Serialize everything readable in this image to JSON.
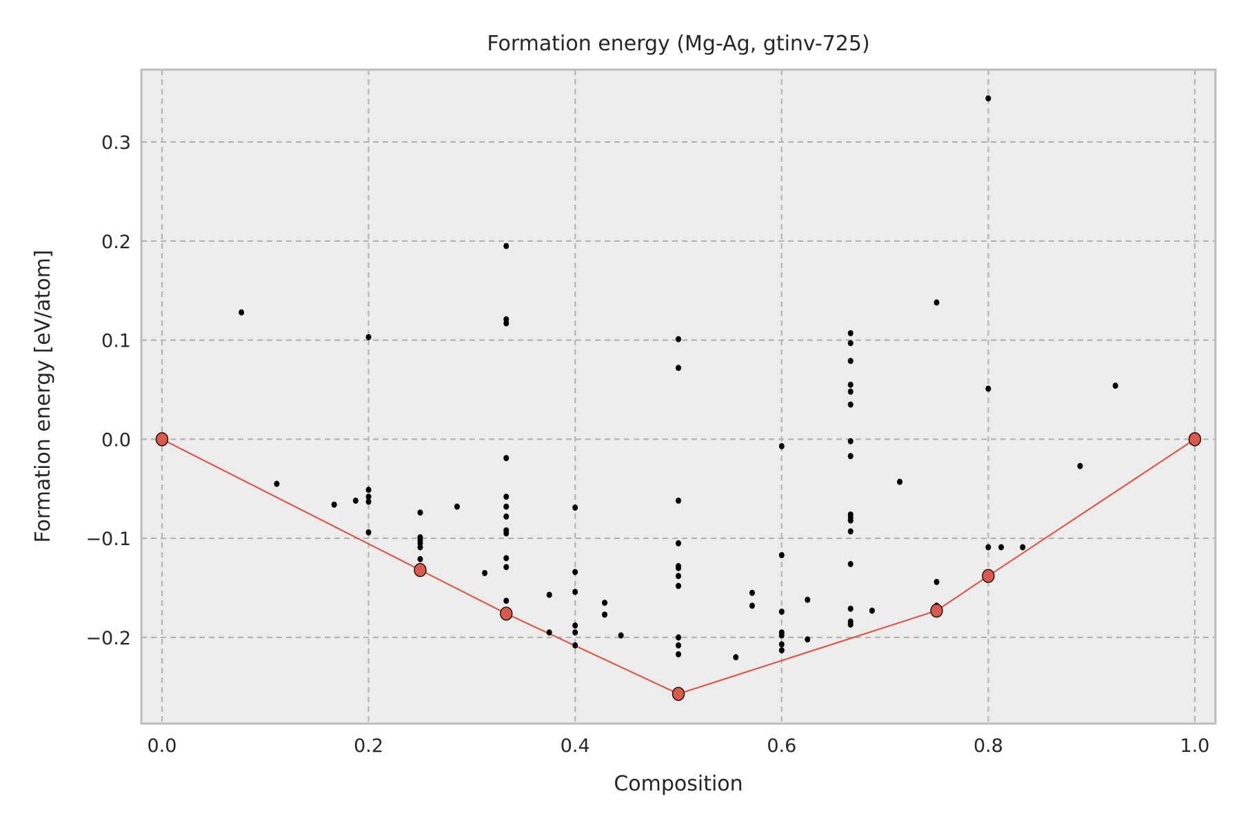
{
  "chart_data": {
    "type": "scatter",
    "title": "Formation energy (Mg-Ag, gtinv-725)",
    "xlabel": "Composition",
    "ylabel": "Formation energy [eV/atom]",
    "xlim": [
      -0.02,
      1.02
    ],
    "ylim": [
      -0.287,
      0.373
    ],
    "xticks": [
      0.0,
      0.2,
      0.4,
      0.6,
      0.8,
      1.0
    ],
    "xtick_labels": [
      "0.0",
      "0.2",
      "0.4",
      "0.6",
      "0.8",
      "1.0"
    ],
    "yticks": [
      -0.2,
      -0.1,
      0.0,
      0.1,
      0.2,
      0.3
    ],
    "ytick_labels": [
      "−0.2",
      "−0.1",
      "0.0",
      "0.1",
      "0.2",
      "0.3"
    ],
    "grid": true,
    "colors": {
      "background": "#ececec",
      "frame": "#bcbcbc",
      "grid": "#b0b0b0",
      "points": "#000000",
      "hull": "#d9594a"
    },
    "series": [
      {
        "kind": "scatter",
        "x": [
          0.0769,
          0.1111,
          0.1667,
          0.1875,
          0.2,
          0.2,
          0.2,
          0.2,
          0.2,
          0.25,
          0.25,
          0.25,
          0.25,
          0.25,
          0.25,
          0.2857,
          0.3125,
          0.3333,
          0.3333,
          0.3333,
          0.3333,
          0.3333,
          0.3333,
          0.3333,
          0.3333,
          0.3333,
          0.3333,
          0.3333,
          0.3333,
          0.375,
          0.375,
          0.4,
          0.4,
          0.4,
          0.4,
          0.4,
          0.4,
          0.4286,
          0.4286,
          0.4444,
          0.5,
          0.5,
          0.5,
          0.5,
          0.5,
          0.5,
          0.5,
          0.5,
          0.5,
          0.5,
          0.5,
          0.5556,
          0.5714,
          0.5714,
          0.6,
          0.6,
          0.6,
          0.6,
          0.6,
          0.6,
          0.6,
          0.625,
          0.625,
          0.6667,
          0.6667,
          0.6667,
          0.6667,
          0.6667,
          0.6667,
          0.6667,
          0.6667,
          0.6667,
          0.6667,
          0.6667,
          0.6667,
          0.6667,
          0.6667,
          0.6667,
          0.6667,
          0.6875,
          0.7143,
          0.75,
          0.75,
          0.75,
          0.8,
          0.8,
          0.8,
          0.8125,
          0.8333,
          0.8889,
          0.9231
        ],
        "y": [
          0.128,
          -0.045,
          -0.066,
          -0.062,
          0.103,
          -0.051,
          -0.058,
          -0.063,
          -0.094,
          -0.074,
          -0.099,
          -0.102,
          -0.105,
          -0.109,
          -0.121,
          -0.068,
          -0.135,
          0.195,
          0.121,
          0.117,
          -0.019,
          -0.058,
          -0.068,
          -0.078,
          -0.092,
          -0.095,
          -0.12,
          -0.129,
          -0.163,
          -0.157,
          -0.195,
          -0.069,
          -0.134,
          -0.154,
          -0.188,
          -0.195,
          -0.208,
          -0.165,
          -0.177,
          -0.198,
          0.101,
          0.072,
          -0.062,
          -0.105,
          -0.128,
          -0.13,
          -0.138,
          -0.148,
          -0.2,
          -0.208,
          -0.217,
          -0.22,
          -0.155,
          -0.168,
          -0.007,
          -0.117,
          -0.174,
          -0.195,
          -0.198,
          -0.207,
          -0.213,
          -0.162,
          -0.202,
          0.107,
          0.097,
          0.079,
          0.055,
          0.048,
          0.035,
          -0.002,
          -0.017,
          -0.076,
          -0.079,
          -0.082,
          -0.093,
          -0.126,
          -0.171,
          -0.184,
          -0.187,
          -0.173,
          -0.043,
          0.138,
          -0.144,
          -0.168,
          0.344,
          0.051,
          -0.109,
          -0.109,
          -0.109,
          -0.027,
          0.054
        ]
      },
      {
        "kind": "line-with-markers",
        "x": [
          0.0,
          0.25,
          0.3333,
          0.5,
          0.75,
          0.8,
          1.0
        ],
        "y": [
          0.0,
          -0.132,
          -0.176,
          -0.257,
          -0.173,
          -0.138,
          0.0
        ]
      }
    ]
  }
}
